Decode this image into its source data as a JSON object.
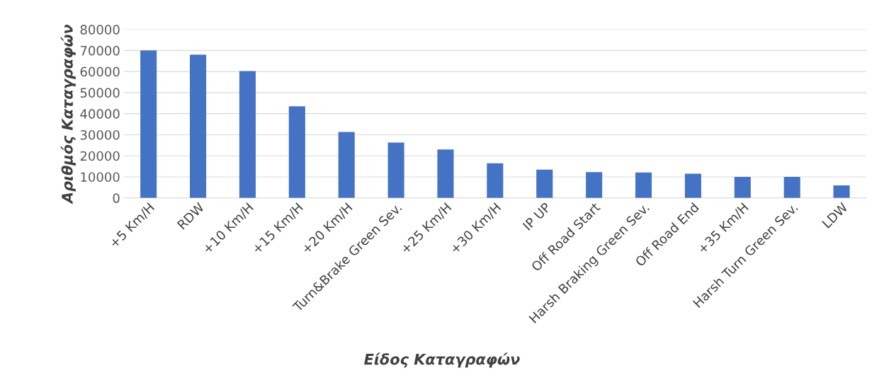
{
  "chart_data": {
    "type": "bar",
    "xlabel": "Είδος Καταγραφών",
    "ylabel": "Αριθμός Καταγραφών",
    "categories": [
      "+5 Km/H",
      "RDW",
      "+10 Km/H",
      "+15 Km/H",
      "+20 Km/H",
      "Turn&Brake Green Sev.",
      "+25 Km/H",
      "+30 Km/H",
      "IP UP",
      "Off Road Start",
      "Harsh Braking Green Sev.",
      "Off Road End",
      "+35 Km/H",
      "Harsh Turn Green Sev.",
      "LDW"
    ],
    "values": [
      70000,
      68000,
      60200,
      43500,
      31300,
      26300,
      23000,
      16500,
      13400,
      12300,
      12100,
      11500,
      10000,
      10000,
      6000
    ],
    "color": "#4472c4",
    "ylim": [
      0,
      80000
    ],
    "yticks": [
      0,
      10000,
      20000,
      30000,
      40000,
      50000,
      60000,
      70000,
      80000
    ],
    "grid": "y"
  }
}
